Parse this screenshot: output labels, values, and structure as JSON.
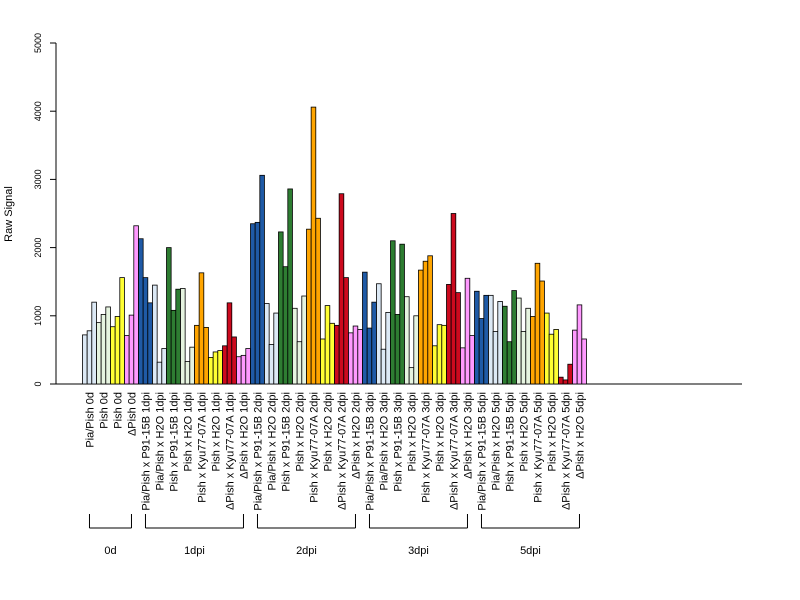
{
  "chart_data": {
    "type": "bar",
    "ylabel": "Raw Signal",
    "ylim": [
      0,
      5000
    ],
    "yticks": [
      0,
      1000,
      2000,
      3000,
      4000,
      5000
    ],
    "categories": [
      "Pia/Pish 0d",
      "Pish 0d",
      "Pish 0d",
      "ΔPish 0d",
      "Pia/Pish x P91-15B 1dpi",
      "Pia/Pish x H2O 1dpi",
      "Pish x P91-15B 1dpi",
      "Pish x H2O 1dpi",
      "Pish x Kyu77-07A 1dpi",
      "Pish x H2O 1dpi",
      "ΔPish x Kyu77-07A 1dpi",
      "ΔPish x H2O 1dpi",
      "Pia/Pish x P91-15B 2dpi",
      "Pia/Pish x H2O 2dpi",
      "Pish x P91-15B 2dpi",
      "Pish x H2O 2dpi",
      "Pish x Kyu77-07A 2dpi",
      "Pish x H2O 2dpi",
      "ΔPish x Kyu77-07A 2dpi",
      "ΔPish x H2O 2dpi",
      "Pia/Pish x P91-15B 3dpi",
      "Pia/Pish x H2O 3dpi",
      "Pish x P91-15B 3dpi",
      "Pish x H2O 3dpi",
      "Pish x Kyu77-07A 3dpi",
      "Pish x H2O 3dpi",
      "ΔPish x Kyu77-07A 3dpi",
      "ΔPish x H2O 3dpi",
      "Pia/Pish x P91-15B 5dpi",
      "Pia/Pish x H2O 5dpi",
      "Pish x P91-15B 5dpi",
      "Pish x H2O 5dpi",
      "Pish x Kyu77-07A 5dpi",
      "Pish x H2O 5dpi",
      "ΔPish x Kyu77-07A 5dpi",
      "ΔPish x H2O 5dpi"
    ],
    "colors": [
      "#dce9f5",
      "#e6f4e0",
      "#ffff33",
      "#ff99ff",
      "#1f5aa6",
      "#dce9f5",
      "#2e7d32",
      "#e6f4e0",
      "#ffa500",
      "#ffff33",
      "#cc0a1e",
      "#ff99ff",
      "#1f5aa6",
      "#dce9f5",
      "#2e7d32",
      "#e6f4e0",
      "#ffa500",
      "#ffff33",
      "#cc0a1e",
      "#ff99ff",
      "#1f5aa6",
      "#dce9f5",
      "#2e7d32",
      "#e6f4e0",
      "#ffa500",
      "#ffff33",
      "#cc0a1e",
      "#ff99ff",
      "#1f5aa6",
      "#dce9f5",
      "#2e7d32",
      "#e6f4e0",
      "#ffa500",
      "#ffff33",
      "#cc0a1e",
      "#ff99ff"
    ],
    "values": [
      [
        720,
        780,
        1200
      ],
      [
        900,
        1020,
        1130
      ],
      [
        840,
        990,
        1560
      ],
      [
        710,
        1010,
        2320
      ],
      [
        2130,
        1560,
        1190
      ],
      [
        1450,
        320,
        520
      ],
      [
        2000,
        1080,
        1390
      ],
      [
        1400,
        330,
        540
      ],
      [
        860,
        1630,
        830
      ],
      [
        390,
        470,
        490
      ],
      [
        560,
        1190,
        690
      ],
      [
        400,
        420,
        520
      ],
      [
        2350,
        2370,
        3060
      ],
      [
        1180,
        580,
        1040
      ],
      [
        2230,
        1720,
        2860
      ],
      [
        1110,
        620,
        1290
      ],
      [
        2270,
        4060,
        2430
      ],
      [
        660,
        1150,
        890
      ],
      [
        860,
        2790,
        1560
      ],
      [
        750,
        850,
        800
      ],
      [
        1640,
        820,
        1200
      ],
      [
        1470,
        510,
        1050
      ],
      [
        2100,
        1020,
        2050
      ],
      [
        1280,
        240,
        1000
      ],
      [
        1670,
        1800,
        1880
      ],
      [
        560,
        870,
        860
      ],
      [
        1460,
        2500,
        1340
      ],
      [
        530,
        1550,
        710
      ],
      [
        1360,
        960,
        1300
      ],
      [
        1300,
        770,
        1210
      ],
      [
        1140,
        620,
        1370
      ],
      [
        1260,
        770,
        1110
      ],
      [
        990,
        1770,
        1510
      ],
      [
        1040,
        730,
        800
      ],
      [
        100,
        60,
        290
      ],
      [
        790,
        1160,
        660
      ]
    ],
    "groups": [
      {
        "label": "0d",
        "start": 0,
        "end": 3
      },
      {
        "label": "1dpi",
        "start": 4,
        "end": 11
      },
      {
        "label": "2dpi",
        "start": 12,
        "end": 19
      },
      {
        "label": "3dpi",
        "start": 20,
        "end": 27
      },
      {
        "label": "5dpi",
        "start": 28,
        "end": 35
      }
    ]
  }
}
